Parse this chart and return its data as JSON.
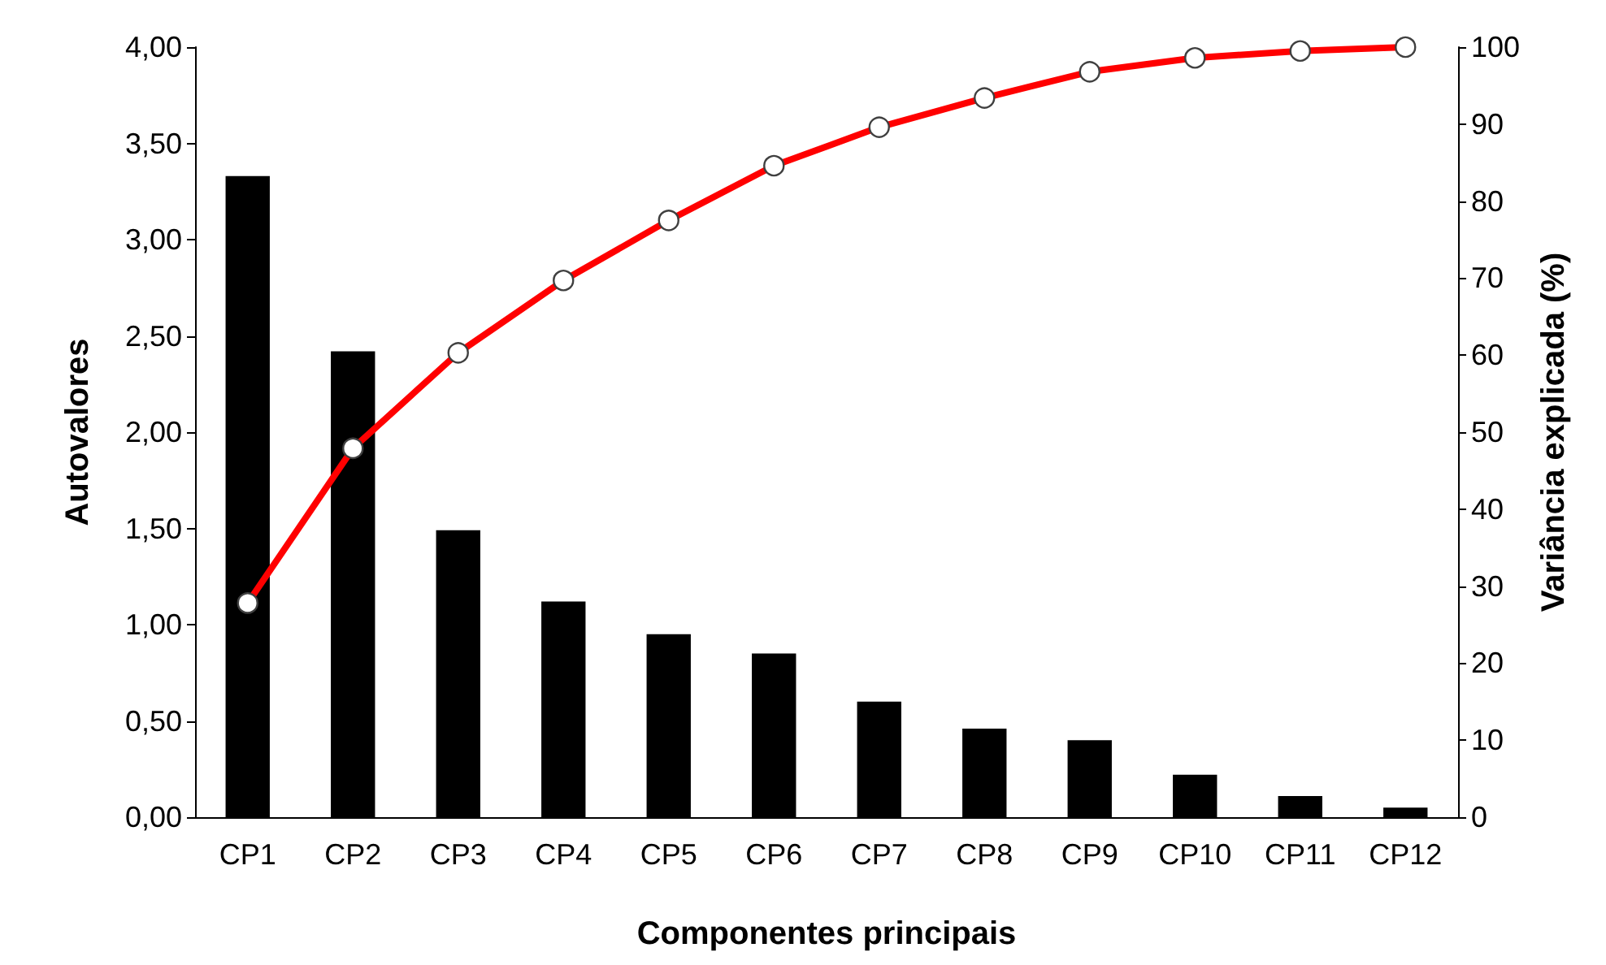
{
  "chart_data": {
    "type": "bar",
    "xlabel": "Componentes principais",
    "ylabel": "Autovalores",
    "y2label": "Variância explicada (%)",
    "categories": [
      "CP1",
      "CP2",
      "CP3",
      "CP4",
      "CP5",
      "CP6",
      "CP7",
      "CP8",
      "CP9",
      "CP10",
      "CP11",
      "CP12"
    ],
    "series": [
      {
        "color": "#000000",
        "values": [
          3.33,
          2.42,
          1.49,
          1.12,
          0.95,
          0.85,
          0.6,
          0.46,
          0.4,
          0.22,
          0.11,
          0.05
        ]
      },
      {
        "type": "line",
        "axis": "y2",
        "color": "#ff0000",
        "marker": "circle",
        "values": [
          27.8,
          47.9,
          60.3,
          69.7,
          77.5,
          84.6,
          89.6,
          93.4,
          96.8,
          98.6,
          99.5,
          100
        ]
      }
    ],
    "ylim": [
      0,
      4
    ],
    "yticks": [
      {
        "value": 0,
        "label": "0,00"
      },
      {
        "value": 0.5,
        "label": "0,50"
      },
      {
        "value": 1,
        "label": "1,00"
      },
      {
        "value": 1.5,
        "label": "1,50"
      },
      {
        "value": 2,
        "label": "2,00"
      },
      {
        "value": 2.5,
        "label": "2,50"
      },
      {
        "value": 3,
        "label": "3,00"
      },
      {
        "value": 3.5,
        "label": "3,50"
      },
      {
        "value": 4,
        "label": "4,00"
      }
    ],
    "y2lim": [
      0,
      100
    ],
    "y2ticks": [
      0,
      10,
      20,
      30,
      40,
      50,
      60,
      70,
      80,
      90,
      100
    ],
    "grid": false
  }
}
